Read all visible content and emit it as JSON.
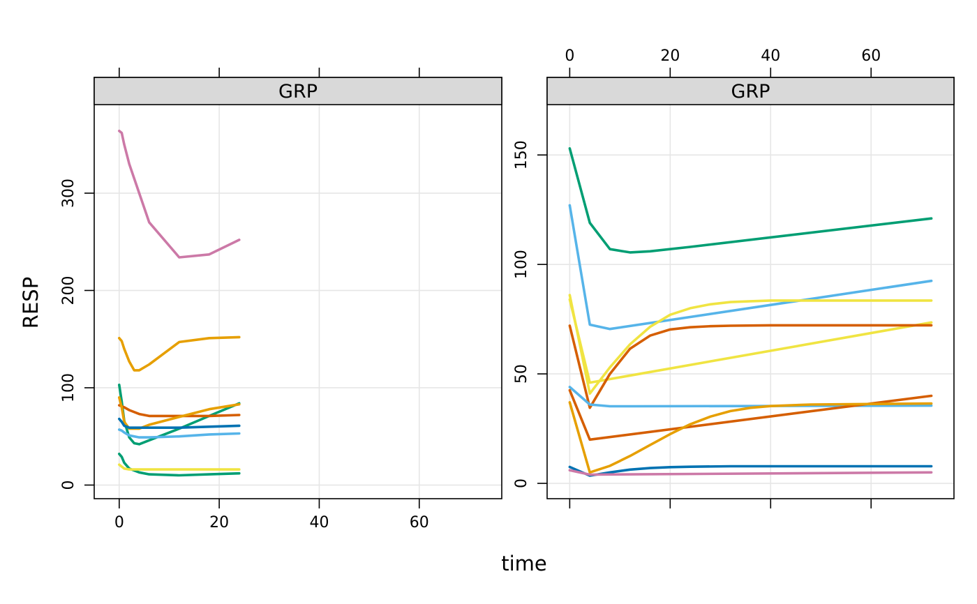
{
  "figure": {
    "xlabel": "time",
    "ylabel": "RESP"
  },
  "chart_data": [
    {
      "type": "line",
      "strip_label": "GRP",
      "xlim": [
        -5,
        76.5
      ],
      "ylim": [
        -14,
        391
      ],
      "xticks": [
        0,
        20,
        40,
        60
      ],
      "xtick_labels": [
        "0",
        "20",
        "40",
        "60"
      ],
      "yticks": [
        0,
        100,
        200,
        300
      ],
      "ytick_labels": [
        "0",
        "100",
        "200",
        "300"
      ],
      "xtick_labels_side": "bottom",
      "ytick_labels_side": "left",
      "grid": true,
      "series": [
        {
          "name": "pink",
          "color": "#CC79A7",
          "x": [
            0,
            0.5,
            1,
            2,
            4,
            6,
            12,
            18,
            24
          ],
          "y": [
            364,
            362,
            350,
            330,
            300,
            270,
            234,
            237,
            252
          ]
        },
        {
          "name": "orange-high",
          "color": "#E69F00",
          "x": [
            0,
            0.5,
            1,
            2,
            3,
            4,
            6,
            12,
            18,
            24
          ],
          "y": [
            151,
            148,
            140,
            127,
            118,
            118,
            124,
            147,
            151,
            152
          ]
        },
        {
          "name": "green-a",
          "color": "#009E73",
          "x": [
            0,
            0.5,
            1,
            2,
            3,
            4,
            6,
            12,
            18,
            24
          ],
          "y": [
            103,
            86,
            66,
            49,
            43,
            42,
            46,
            58,
            71,
            84
          ]
        },
        {
          "name": "vermillion",
          "color": "#D55E00",
          "x": [
            0,
            0.5,
            1,
            2,
            4,
            6,
            12,
            18,
            24
          ],
          "y": [
            82,
            81,
            80,
            77,
            73,
            71,
            71,
            71,
            72
          ]
        },
        {
          "name": "orange-low",
          "color": "#E69F00",
          "x": [
            0,
            0.5,
            1,
            2,
            4,
            6,
            12,
            18,
            24
          ],
          "y": [
            90,
            80,
            65,
            58,
            58,
            62,
            70,
            78,
            83
          ]
        },
        {
          "name": "blue",
          "color": "#0072B2",
          "x": [
            0,
            0.5,
            1,
            2,
            4,
            6,
            12,
            18,
            24
          ],
          "y": [
            68,
            65,
            61,
            59,
            59,
            59,
            59,
            60,
            61
          ]
        },
        {
          "name": "skyblue",
          "color": "#56B4E9",
          "x": [
            0,
            0.5,
            1,
            2,
            4,
            6,
            12,
            18,
            24
          ],
          "y": [
            57,
            56,
            54,
            51,
            49,
            49,
            50,
            52,
            53
          ]
        },
        {
          "name": "green-b",
          "color": "#009E73",
          "x": [
            0,
            0.5,
            1,
            2,
            4,
            6,
            12,
            18,
            24
          ],
          "y": [
            32,
            29,
            23,
            17,
            13,
            11,
            10,
            11,
            12
          ]
        },
        {
          "name": "yellow",
          "color": "#F0E442",
          "x": [
            0,
            0.5,
            1,
            2,
            4,
            6,
            12,
            18,
            24
          ],
          "y": [
            21,
            19,
            17,
            16,
            16,
            16,
            16,
            16,
            16
          ]
        }
      ]
    },
    {
      "type": "line",
      "strip_label": "GRP",
      "xlim": [
        -4.5,
        76.5
      ],
      "ylim": [
        -7,
        173
      ],
      "xticks": [
        0,
        20,
        40,
        60
      ],
      "xtick_labels": [
        "0",
        "20",
        "40",
        "60"
      ],
      "yticks": [
        0,
        50,
        100,
        150
      ],
      "ytick_labels": [
        "0",
        "50",
        "100",
        "150"
      ],
      "xtick_labels_side": "top",
      "ytick_labels_side": "left",
      "grid": true,
      "series": [
        {
          "name": "green",
          "color": "#009E73",
          "x": [
            0,
            4,
            8,
            12,
            16,
            24,
            72
          ],
          "y": [
            153,
            119,
            107,
            105.5,
            106,
            108,
            121
          ]
        },
        {
          "name": "skyblue-high",
          "color": "#56B4E9",
          "x": [
            0,
            4,
            8,
            72
          ],
          "y": [
            127,
            72.5,
            70.5,
            92.5
          ]
        },
        {
          "name": "yellow-a",
          "color": "#F0E442",
          "x": [
            0,
            4,
            8,
            12,
            16,
            20,
            24,
            28,
            32,
            36,
            40,
            72
          ],
          "y": [
            86,
            41,
            53,
            63.5,
            71.5,
            77,
            80,
            81.8,
            82.8,
            83.2,
            83.5,
            83.5
          ]
        },
        {
          "name": "yellow-b",
          "color": "#F0E442",
          "x": [
            0,
            4,
            72
          ],
          "y": [
            84,
            46,
            73.5
          ]
        },
        {
          "name": "vermillion-a",
          "color": "#D55E00",
          "x": [
            0,
            4,
            8,
            12,
            16,
            20,
            24,
            28,
            32,
            40,
            72
          ],
          "y": [
            72,
            34.5,
            50,
            61.5,
            67.5,
            70.3,
            71.3,
            71.8,
            72,
            72.2,
            72.2
          ]
        },
        {
          "name": "skyblue-low",
          "color": "#56B4E9",
          "x": [
            0,
            4,
            8,
            12,
            72
          ],
          "y": [
            44,
            36,
            35.2,
            35.2,
            35.5
          ]
        },
        {
          "name": "vermillion-b",
          "color": "#D55E00",
          "x": [
            0,
            4,
            72
          ],
          "y": [
            42.5,
            20,
            40
          ]
        },
        {
          "name": "orange",
          "color": "#E69F00",
          "x": [
            0,
            4,
            8,
            12,
            16,
            20,
            24,
            28,
            32,
            36,
            40,
            48,
            72
          ],
          "y": [
            37,
            5,
            8,
            12.5,
            17.5,
            22.5,
            27,
            30.5,
            33,
            34.5,
            35.3,
            36,
            36.5
          ]
        },
        {
          "name": "blue",
          "color": "#0072B2",
          "x": [
            0,
            4,
            8,
            12,
            16,
            20,
            24,
            32,
            72
          ],
          "y": [
            7.5,
            3.5,
            5,
            6.3,
            7,
            7.4,
            7.6,
            7.8,
            7.8
          ]
        },
        {
          "name": "pink",
          "color": "#CC79A7",
          "x": [
            0,
            4,
            72
          ],
          "y": [
            6,
            4,
            5
          ]
        }
      ]
    }
  ]
}
